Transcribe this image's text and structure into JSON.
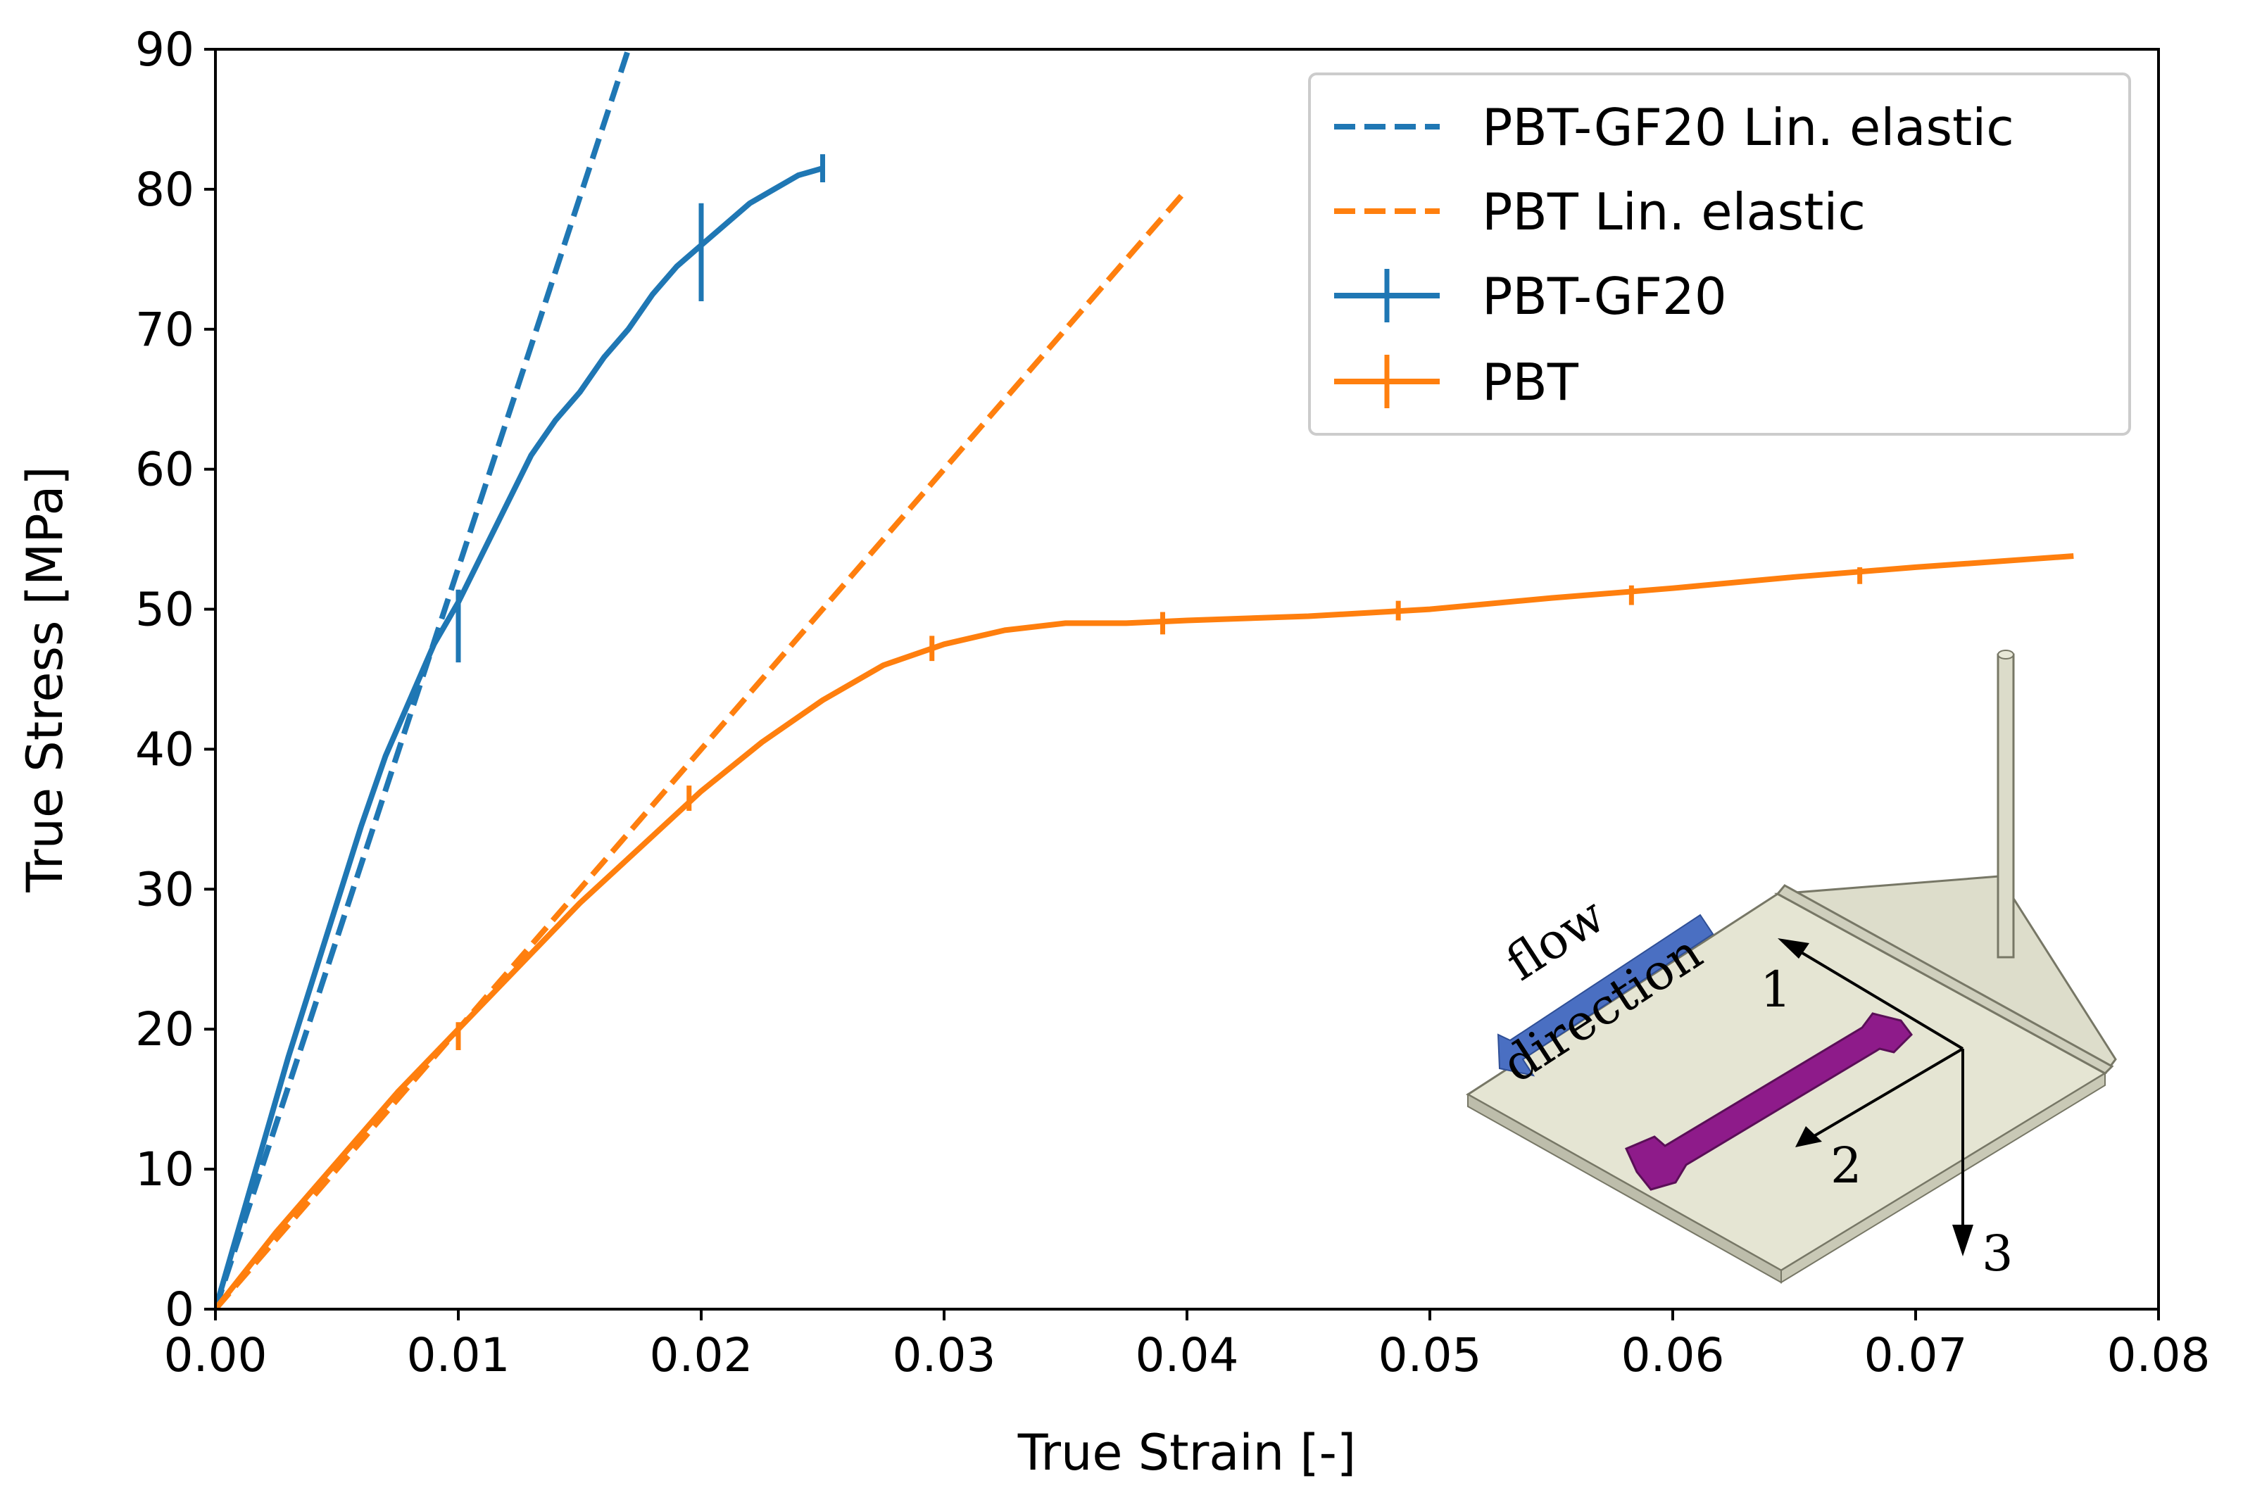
{
  "chart_data": {
    "type": "line",
    "title": "",
    "xlabel": "True Strain [-]",
    "ylabel": "True Stress [MPa]",
    "xlim": [
      0,
      0.08
    ],
    "ylim": [
      0,
      90
    ],
    "grid": false,
    "legend_position": "top-right",
    "x_ticks": [
      0,
      0.01,
      0.02,
      0.03,
      0.04,
      0.05,
      0.06,
      0.07,
      0.08
    ],
    "x_tick_labels": [
      "0.00",
      "0.01",
      "0.02",
      "0.03",
      "0.04",
      "0.05",
      "0.06",
      "0.07",
      "0.08"
    ],
    "y_ticks": [
      0,
      10,
      20,
      30,
      40,
      50,
      60,
      70,
      80,
      90
    ],
    "y_tick_labels": [
      "0",
      "10",
      "20",
      "30",
      "40",
      "50",
      "60",
      "70",
      "80",
      "90"
    ],
    "colors": {
      "gf20": "#1f77b4",
      "pbt": "#ff7f0e",
      "axis": "#000000",
      "legend_border": "#cccccc"
    },
    "series": [
      {
        "name": "PBT-GF20 Lin. elastic",
        "style": "dashed",
        "color": "#1f77b4",
        "x": [
          0,
          0.017
        ],
        "y": [
          0,
          90
        ]
      },
      {
        "name": "PBT Lin. elastic",
        "style": "dashed",
        "color": "#ff7f0e",
        "x": [
          0,
          0.04
        ],
        "y": [
          0,
          80
        ]
      },
      {
        "name": "PBT-GF20",
        "style": "solid",
        "color": "#1f77b4",
        "x": [
          0,
          0.001,
          0.002,
          0.003,
          0.004,
          0.005,
          0.006,
          0.007,
          0.008,
          0.009,
          0.01,
          0.011,
          0.012,
          0.013,
          0.014,
          0.015,
          0.016,
          0.017,
          0.018,
          0.019,
          0.02,
          0.021,
          0.022,
          0.023,
          0.024,
          0.025
        ],
        "y": [
          0,
          6,
          12,
          18,
          23.5,
          29,
          34.5,
          39.5,
          43.5,
          47.5,
          50.5,
          54,
          57.5,
          61,
          63.5,
          65.5,
          68,
          70,
          72.5,
          74.5,
          76,
          77.5,
          79,
          80,
          81,
          81.5
        ],
        "errorbars": [
          {
            "x": 0.01,
            "y": 48.8,
            "err": 2.6
          },
          {
            "x": 0.02,
            "y": 75.5,
            "err": 3.5
          },
          {
            "x": 0.025,
            "y": 81.5,
            "err": 1.0
          }
        ]
      },
      {
        "name": "PBT",
        "style": "solid",
        "color": "#ff7f0e",
        "x": [
          0,
          0.0025,
          0.005,
          0.0075,
          0.01,
          0.0125,
          0.015,
          0.0175,
          0.02,
          0.0225,
          0.025,
          0.0275,
          0.03,
          0.0325,
          0.035,
          0.0375,
          0.04,
          0.045,
          0.05,
          0.055,
          0.06,
          0.065,
          0.07,
          0.0765
        ],
        "y": [
          0,
          5.5,
          10.5,
          15.5,
          20,
          24.5,
          29,
          33,
          37,
          40.5,
          43.5,
          46,
          47.5,
          48.5,
          49,
          49,
          49.2,
          49.5,
          50,
          50.8,
          51.5,
          52.3,
          53,
          53.8
        ],
        "errorbars": [
          {
            "x": 0.01,
            "y": 19.5,
            "err": 1.0
          },
          {
            "x": 0.0195,
            "y": 36.5,
            "err": 0.9
          },
          {
            "x": 0.0295,
            "y": 47.2,
            "err": 0.9
          },
          {
            "x": 0.039,
            "y": 49.0,
            "err": 0.8
          },
          {
            "x": 0.0487,
            "y": 49.9,
            "err": 0.7
          },
          {
            "x": 0.0583,
            "y": 51.0,
            "err": 0.7
          },
          {
            "x": 0.0677,
            "y": 52.4,
            "err": 0.6
          }
        ]
      }
    ],
    "inset": {
      "flow_label": "flow",
      "direction_label": "direction",
      "axis_labels": [
        "1",
        "2",
        "3"
      ]
    }
  }
}
